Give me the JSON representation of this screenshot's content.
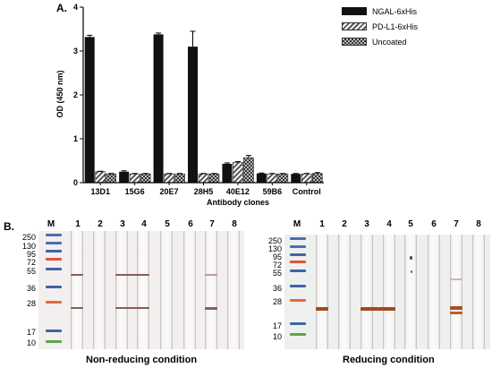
{
  "panel_a": {
    "letter": "A."
  },
  "panel_b": {
    "letter": "B."
  },
  "chart_data": {
    "type": "bar",
    "title": "",
    "xlabel": "Antibody clones",
    "ylabel": "OD (450 nm)",
    "ylim": [
      0,
      4
    ],
    "yticks": [
      "0",
      "1",
      "2",
      "3",
      "4"
    ],
    "categories": [
      "13D1",
      "15G6",
      "20E7",
      "28H5",
      "40E12",
      "59B6",
      "Control"
    ],
    "series": [
      {
        "name": "NGAL-6xHis",
        "values": [
          3.32,
          0.25,
          3.38,
          3.1,
          0.43,
          0.21,
          0.2
        ],
        "errors": [
          0.04,
          0.02,
          0.03,
          0.35,
          0.02,
          0.01,
          0.01
        ],
        "color": "#111111",
        "pattern": "solid"
      },
      {
        "name": "PD-L1-6xHis",
        "values": [
          0.25,
          0.2,
          0.2,
          0.2,
          0.46,
          0.2,
          0.2
        ],
        "errors": [
          0.01,
          0.01,
          0.01,
          0.01,
          0.02,
          0.01,
          0.01
        ],
        "color": "#666666",
        "pattern": "diagonal"
      },
      {
        "name": "Uncoated",
        "values": [
          0.2,
          0.2,
          0.2,
          0.2,
          0.57,
          0.2,
          0.21
        ],
        "errors": [
          0.01,
          0.01,
          0.01,
          0.01,
          0.05,
          0.01,
          0.02
        ],
        "color": "#444444",
        "pattern": "checker"
      }
    ],
    "legend_position": "top-right",
    "grid": false
  },
  "blots": {
    "ladder_label": "M",
    "lanes": [
      "1",
      "2",
      "3",
      "4",
      "5",
      "6",
      "7",
      "8"
    ],
    "mw_markers": [
      "250",
      "130",
      "95",
      "72",
      "55",
      "36",
      "28",
      "17",
      "10"
    ],
    "left_caption": "Non-reducing condition",
    "right_caption": "Reducing condition"
  }
}
